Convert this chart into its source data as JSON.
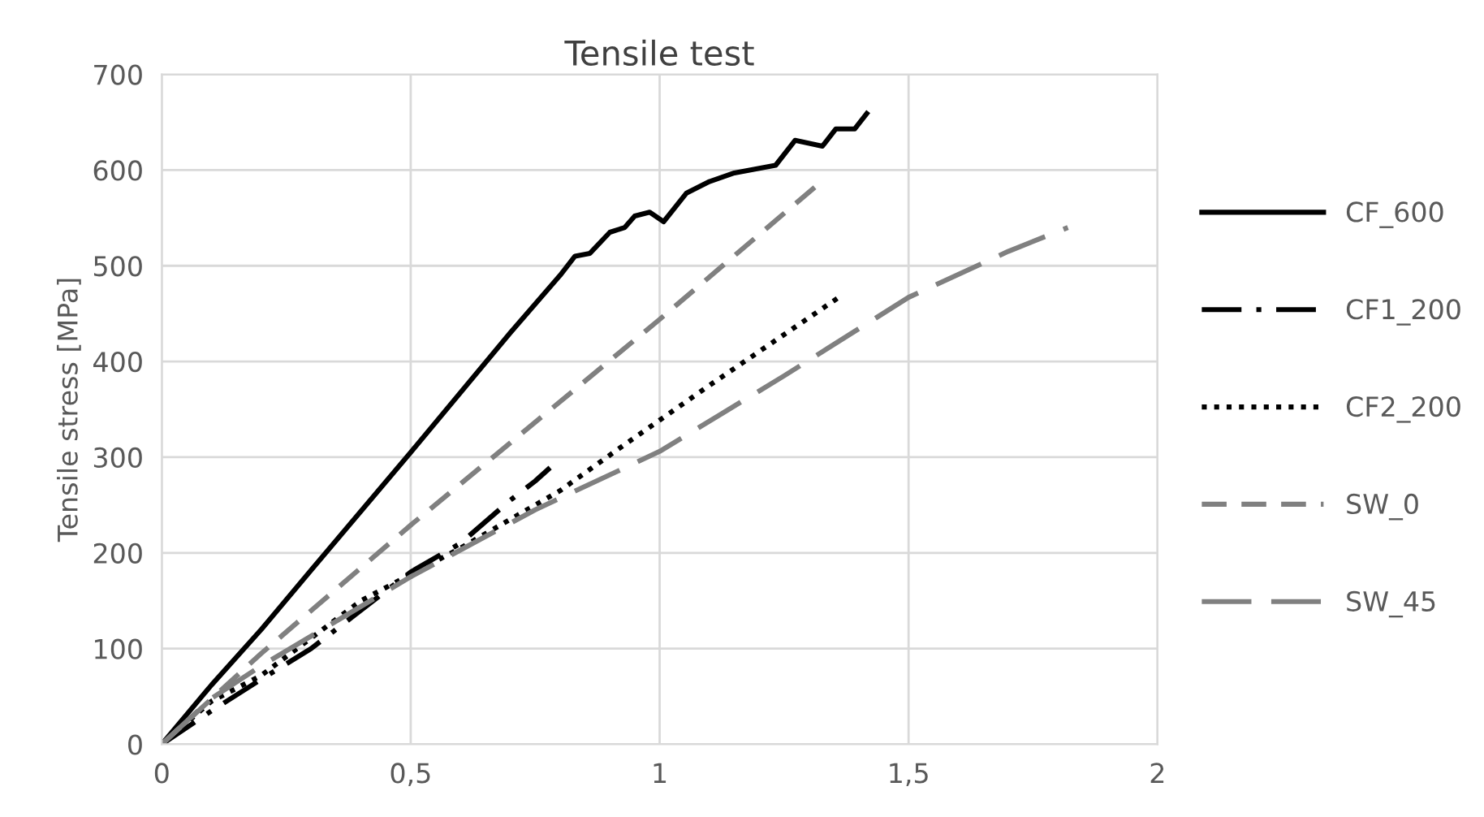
{
  "chart_data": {
    "type": "line",
    "title": "Tensile test",
    "ylabel": "Tensile stress [MPa]",
    "xlim": [
      0,
      2
    ],
    "ylim": [
      0,
      700
    ],
    "xticks": [
      0,
      {
        "value": 0.5,
        "label": "0,5"
      },
      1,
      {
        "value": 1.5,
        "label": "1,5"
      },
      2
    ],
    "yticks": [
      0,
      100,
      200,
      300,
      400,
      500,
      600,
      700
    ],
    "grid": true,
    "legend": "right",
    "marker": "none",
    "series": [
      {
        "name": "CF_600",
        "color": "#000000",
        "line_style": "solid",
        "x": [
          0,
          0.1,
          0.2,
          0.3,
          0.5,
          0.7,
          0.8,
          0.83,
          0.86,
          0.9,
          0.93,
          0.95,
          0.98,
          1.008,
          1.054,
          1.1,
          1.15,
          1.233,
          1.272,
          1.327,
          1.354,
          1.392,
          1.416
        ],
        "values": [
          0,
          62,
          120,
          182,
          305,
          430,
          490,
          510,
          513,
          535,
          540,
          552,
          556,
          546,
          576,
          588,
          597,
          605,
          631,
          625,
          643,
          643,
          659
        ]
      },
      {
        "name": "CF1_200",
        "color": "#000000",
        "line_style": "dashdot",
        "x": [
          0,
          0.1,
          0.2,
          0.3,
          0.5,
          0.6,
          0.7,
          0.75,
          0.78
        ],
        "values": [
          0,
          35,
          68,
          100,
          180,
          210,
          255,
          275,
          289
        ]
      },
      {
        "name": "CF2_200",
        "color": "#000000",
        "line_style": "dotted",
        "x": [
          0,
          0.1,
          0.2,
          0.4,
          0.6,
          0.8,
          0.913,
          1.1,
          1.357
        ],
        "values": [
          0,
          45,
          72,
          150,
          205,
          265,
          307,
          375,
          466
        ]
      },
      {
        "name": "SW_0",
        "color": "#808080",
        "line_style": "dashed",
        "x": [
          0,
          0.2,
          0.5,
          1,
          1.325
        ],
        "values": [
          0,
          95,
          229,
          444,
          588
        ]
      },
      {
        "name": "SW_45",
        "color": "#808080",
        "line_style": "long_dashed",
        "x": [
          0,
          0.1,
          0.2,
          0.5,
          0.75,
          1,
          1.25,
          1.5,
          1.7,
          1.82
        ],
        "values": [
          0,
          48,
          82,
          175,
          245,
          306,
          385,
          467,
          515,
          540
        ]
      }
    ]
  }
}
